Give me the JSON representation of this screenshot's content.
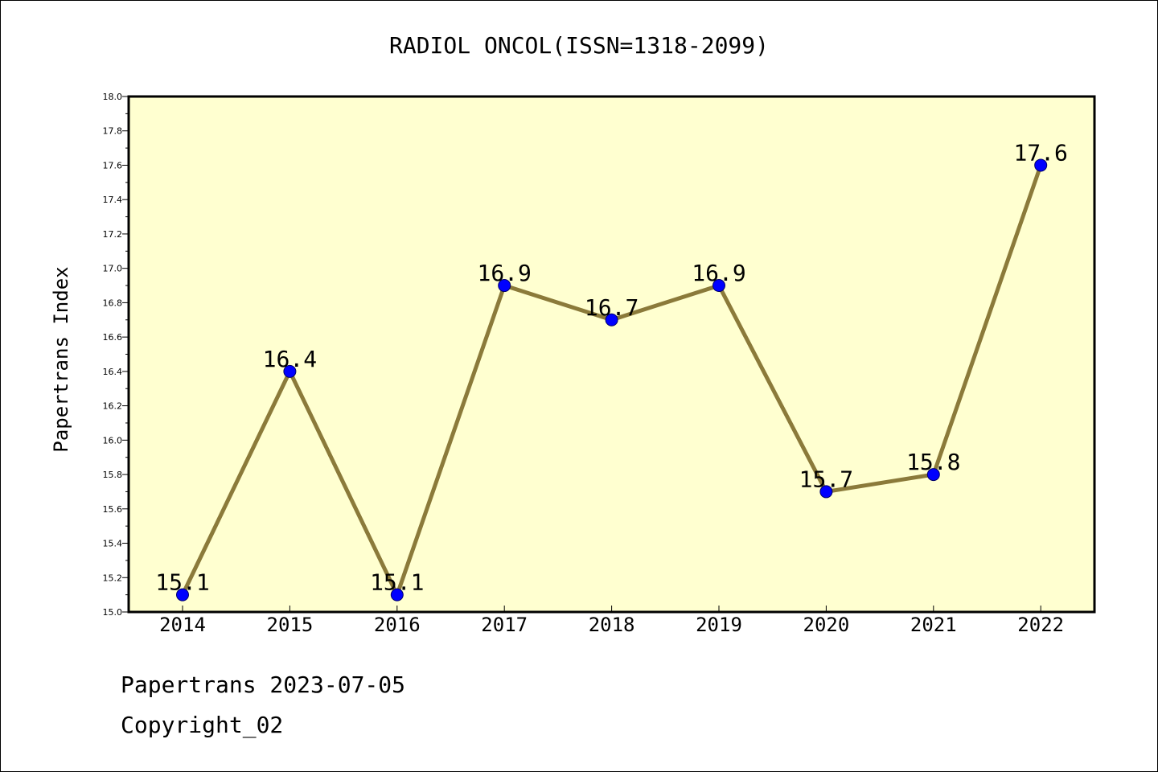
{
  "chart_data": {
    "type": "line",
    "title": "RADIOL ONCOL(ISSN=1318-2099)",
    "xlabel": "",
    "ylabel": "Papertrans Index",
    "categories": [
      "2014",
      "2015",
      "2016",
      "2017",
      "2018",
      "2019",
      "2020",
      "2021",
      "2022"
    ],
    "series": [
      {
        "values": [
          15.1,
          16.4,
          15.1,
          16.9,
          16.7,
          16.9,
          15.7,
          15.8,
          17.6
        ]
      }
    ],
    "data_labels": [
      "15.1",
      "16.4",
      "15.1",
      "16.9",
      "16.7",
      "16.9",
      "15.7",
      "15.8",
      "17.6"
    ],
    "ylim": [
      15.0,
      18.0
    ],
    "yticks": [
      "15.0",
      "15.2",
      "15.4",
      "15.6",
      "15.8",
      "16.0",
      "16.2",
      "16.4",
      "16.6",
      "16.8",
      "17.0",
      "17.2",
      "17.4",
      "17.6",
      "17.8",
      "18.0"
    ],
    "grid": false,
    "legend": "none",
    "colors": {
      "plot_background": "#ffffd0",
      "line": "#8b7a3a",
      "marker": "#0000ff"
    }
  },
  "footer": {
    "line1": "Papertrans 2023-07-05",
    "line2": "Copyright_02"
  }
}
